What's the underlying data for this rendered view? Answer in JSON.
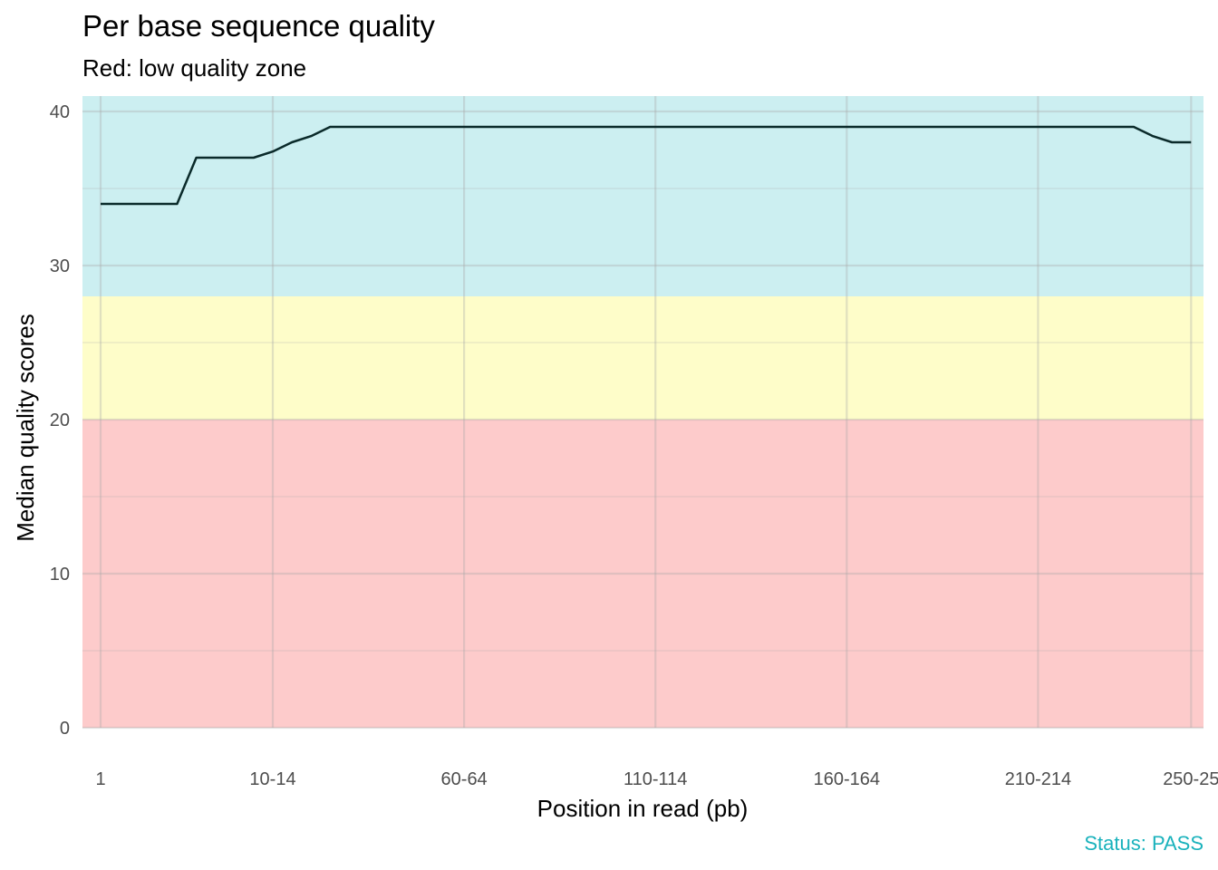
{
  "chart_data": {
    "type": "line",
    "title": "Per base sequence quality",
    "subtitle": "Red: low quality zone",
    "xlabel": "Position in read (pb)",
    "ylabel": "Median quality scores",
    "caption": "Status: PASS",
    "x_ticks": [
      "1",
      "10-14",
      "60-64",
      "110-114",
      "160-164",
      "210-214",
      "250-25"
    ],
    "x_tick_index": [
      1,
      10,
      20,
      30,
      40,
      50,
      58
    ],
    "y_ticks": [
      0,
      10,
      20,
      30,
      40
    ],
    "ylim": [
      0,
      41
    ],
    "xlim": [
      0,
      58.4
    ],
    "zones": [
      {
        "from": 0,
        "to": 20,
        "color": "#fdcbcb"
      },
      {
        "from": 20,
        "to": 28,
        "color": "#fefdc9"
      },
      {
        "from": 28,
        "to": 41,
        "color": "#cceff1"
      }
    ],
    "series": [
      {
        "color": "#0a2a2a",
        "x": [
          1,
          2,
          3,
          4,
          5,
          6,
          7,
          8,
          9,
          10,
          11,
          12,
          13,
          14,
          15,
          16,
          17,
          18,
          19,
          20,
          21,
          22,
          23,
          24,
          25,
          26,
          27,
          28,
          29,
          30,
          31,
          32,
          33,
          34,
          35,
          36,
          37,
          38,
          39,
          40,
          41,
          42,
          43,
          44,
          45,
          46,
          47,
          48,
          49,
          50,
          51,
          52,
          53,
          54,
          55,
          56,
          57,
          58
        ],
        "values": [
          34,
          34,
          34,
          34,
          34,
          37,
          37,
          37,
          37,
          37.4,
          38,
          38.4,
          39,
          39,
          39,
          39,
          39,
          39,
          39,
          39,
          39,
          39,
          39,
          39,
          39,
          39,
          39,
          39,
          39,
          39,
          39,
          39,
          39,
          39,
          39,
          39,
          39,
          39,
          39,
          39,
          39,
          39,
          39,
          39,
          39,
          39,
          39,
          39,
          39,
          39,
          39,
          39,
          39,
          39,
          39,
          38.4,
          38,
          38
        ]
      }
    ],
    "grid": true,
    "legend": "none"
  }
}
